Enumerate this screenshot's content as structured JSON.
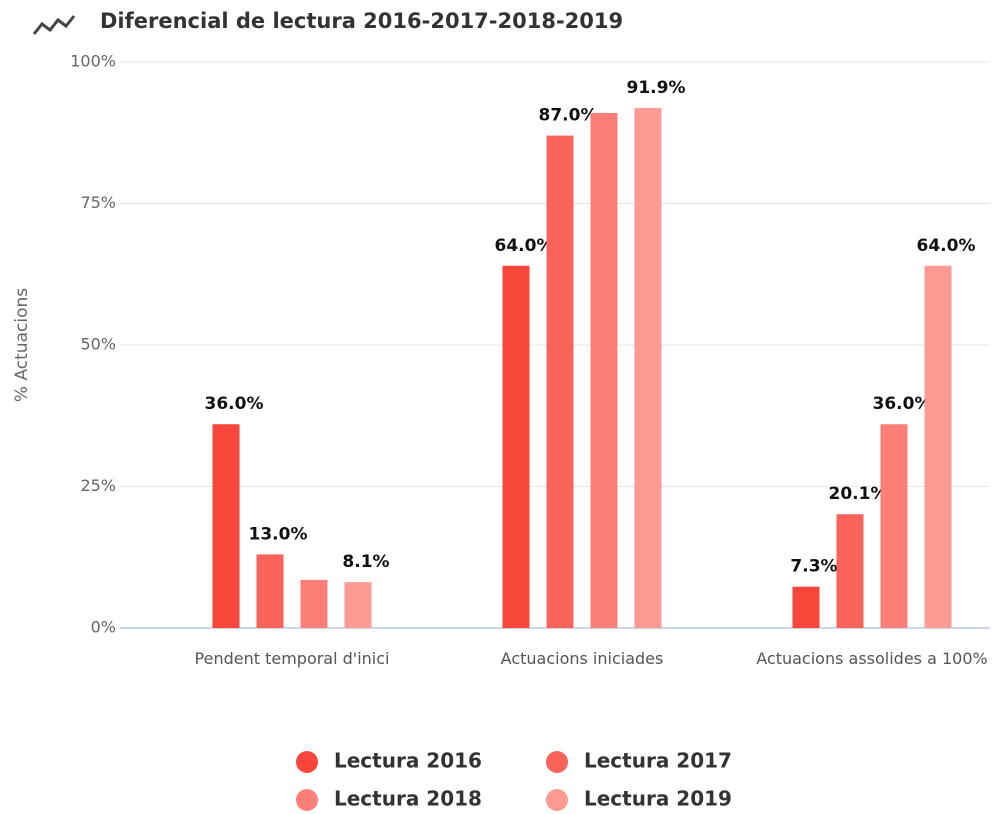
{
  "chart_data": {
    "type": "bar",
    "title": "Diferencial de lectura 2016-2017-2018-2019",
    "y_label": "% Actuacions",
    "categories": [
      "Pendent temporal d'inici",
      "Actuacions iniciades",
      "Actuacions assolides a 100%"
    ],
    "series": [
      {
        "name": "Lectura 2016",
        "color": "#f9463b",
        "values": [
          36.0,
          64.0,
          7.3
        ],
        "value_labels": [
          "36.0%",
          "64.0%",
          "7.3%"
        ]
      },
      {
        "name": "Lectura 2017",
        "color": "#f9635a",
        "values": [
          13.0,
          87.0,
          20.1
        ],
        "value_labels": [
          "13.0%",
          "87.0%",
          "20.1%"
        ]
      },
      {
        "name": "Lectura 2018",
        "color": "#fb7f77",
        "values": [
          8.5,
          91.0,
          36.0
        ],
        "value_labels": [
          null,
          null,
          "36.0%"
        ]
      },
      {
        "name": "Lectura 2019",
        "color": "#fd9a91",
        "values": [
          8.1,
          91.9,
          64.0
        ],
        "value_labels": [
          "8.1%",
          "91.9%",
          "64.0%"
        ]
      }
    ],
    "ylim": [
      0,
      100
    ],
    "yticks": [
      {
        "value": 0,
        "label": "0%"
      },
      {
        "value": 25,
        "label": "25%"
      },
      {
        "value": 50,
        "label": "50%"
      },
      {
        "value": 75,
        "label": "75%"
      },
      {
        "value": 100,
        "label": "100%"
      }
    ],
    "grid": true
  }
}
